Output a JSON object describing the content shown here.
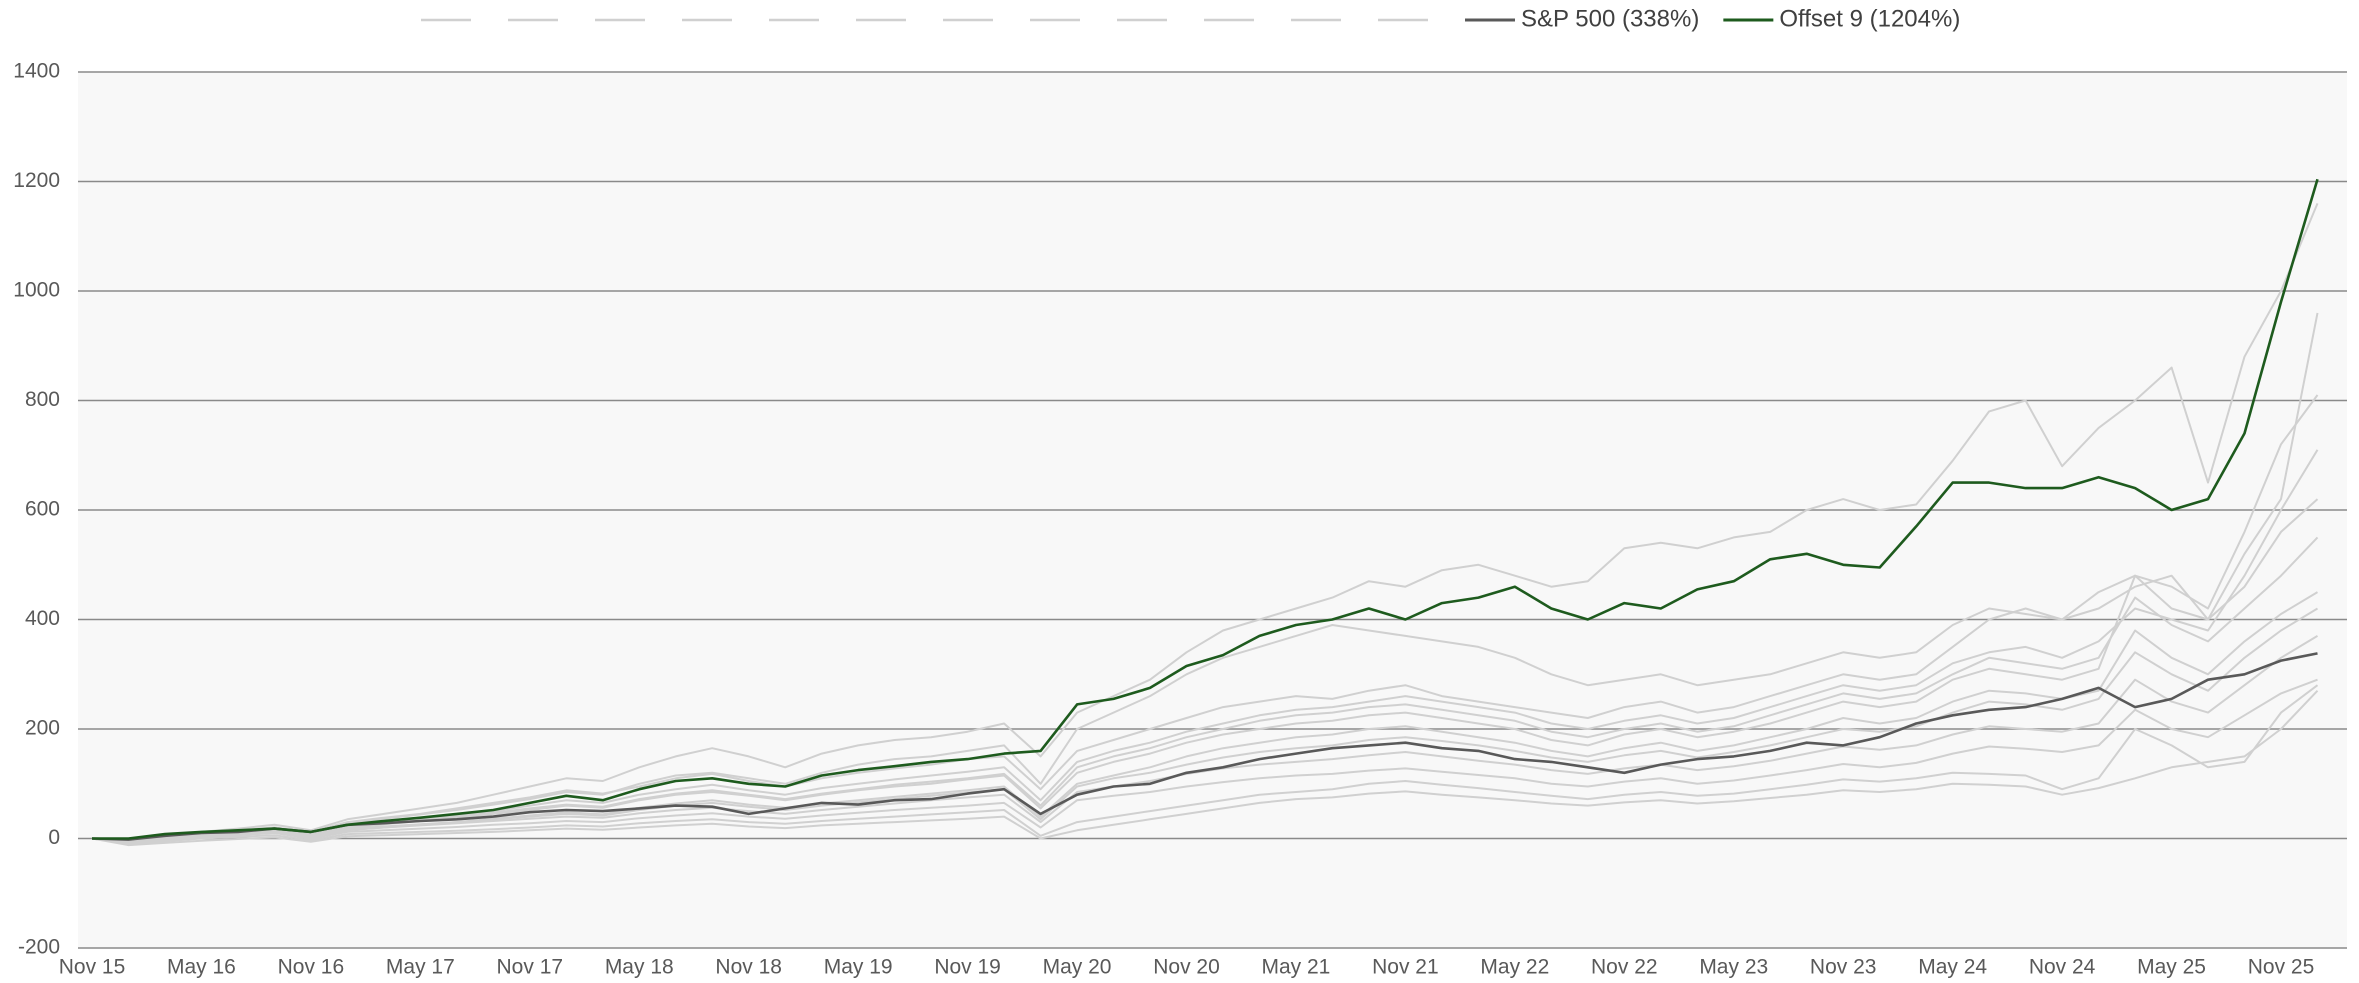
{
  "chart_data": {
    "type": "line",
    "categories": [
      "Nov 15",
      null,
      null,
      "May 16",
      null,
      null,
      "Nov 16",
      null,
      null,
      "May 17",
      null,
      null,
      "Nov 17",
      null,
      null,
      "May 18",
      null,
      null,
      "Nov 18",
      null,
      null,
      "May 19",
      null,
      null,
      "Nov 19",
      null,
      null,
      "May 20",
      null,
      null,
      "Nov 20",
      null,
      null,
      "May 21",
      null,
      null,
      "Nov 21",
      null,
      null,
      "May 22",
      null,
      null,
      "Nov 22",
      null,
      null,
      "May 23",
      null,
      null,
      "Nov 23",
      null,
      null,
      "May 24",
      null,
      null,
      "Nov 24",
      null,
      null,
      "May 25",
      null,
      null,
      "Nov 25",
      null
    ],
    "ylim": [
      -200,
      1400
    ],
    "yticks": [
      -200,
      0,
      200,
      400,
      600,
      800,
      1000,
      1200,
      1400
    ],
    "grid": true,
    "legend": "top",
    "series": [
      {
        "color": "#d0d0d0",
        "values": [
          0,
          -5,
          5,
          12,
          18,
          25,
          15,
          35,
          45,
          55,
          65,
          80,
          95,
          110,
          105,
          130,
          150,
          165,
          150,
          130,
          155,
          170,
          180,
          185,
          195,
          210,
          150,
          230,
          260,
          290,
          340,
          380,
          400,
          420,
          440,
          470,
          460,
          490,
          500,
          480,
          460,
          470,
          530,
          540,
          530,
          550,
          560,
          600,
          620,
          600,
          610,
          690,
          780,
          800,
          680,
          750,
          800,
          860,
          650,
          880,
          1000,
          1160
        ]
      },
      {
        "color": "#d0d0d0",
        "values": [
          0,
          -8,
          2,
          8,
          14,
          20,
          10,
          28,
          36,
          44,
          52,
          62,
          72,
          85,
          80,
          100,
          115,
          120,
          110,
          100,
          120,
          135,
          145,
          150,
          160,
          170,
          100,
          200,
          230,
          260,
          300,
          330,
          350,
          370,
          390,
          380,
          370,
          360,
          350,
          330,
          300,
          280,
          290,
          300,
          280,
          290,
          300,
          320,
          340,
          330,
          340,
          390,
          420,
          410,
          400,
          420,
          460,
          480,
          400,
          520,
          620,
          960
        ]
      },
      {
        "color": "#d0d0d0",
        "values": [
          0,
          -6,
          3,
          9,
          15,
          20,
          12,
          30,
          38,
          45,
          55,
          65,
          75,
          88,
          82,
          95,
          110,
          118,
          105,
          95,
          110,
          120,
          128,
          135,
          145,
          150,
          90,
          160,
          180,
          200,
          220,
          240,
          250,
          260,
          255,
          270,
          280,
          260,
          250,
          240,
          230,
          220,
          240,
          250,
          230,
          240,
          260,
          280,
          300,
          290,
          300,
          350,
          400,
          420,
          400,
          450,
          480,
          460,
          420,
          560,
          720,
          810
        ]
      },
      {
        "color": "#d0d0d0",
        "values": [
          0,
          -4,
          4,
          10,
          14,
          18,
          8,
          24,
          30,
          36,
          42,
          50,
          60,
          70,
          65,
          80,
          90,
          98,
          88,
          80,
          92,
          100,
          108,
          115,
          122,
          130,
          70,
          140,
          160,
          175,
          195,
          210,
          225,
          235,
          240,
          250,
          260,
          250,
          240,
          230,
          210,
          200,
          215,
          225,
          210,
          220,
          240,
          260,
          280,
          270,
          280,
          320,
          340,
          350,
          330,
          360,
          420,
          400,
          380,
          480,
          600,
          710
        ]
      },
      {
        "color": "#d0d0d0",
        "values": [
          0,
          -3,
          3,
          8,
          12,
          16,
          6,
          20,
          26,
          32,
          38,
          45,
          52,
          60,
          56,
          70,
          80,
          85,
          78,
          70,
          80,
          88,
          95,
          100,
          108,
          115,
          55,
          120,
          140,
          155,
          175,
          190,
          200,
          210,
          215,
          225,
          230,
          220,
          210,
          200,
          180,
          170,
          190,
          200,
          185,
          195,
          210,
          230,
          250,
          240,
          250,
          290,
          310,
          300,
          290,
          310,
          480,
          420,
          400,
          460,
          560,
          620
        ]
      },
      {
        "color": "#d0d0d0",
        "values": [
          0,
          -2,
          4,
          9,
          13,
          17,
          8,
          22,
          28,
          34,
          40,
          47,
          55,
          62,
          58,
          72,
          82,
          88,
          80,
          72,
          82,
          90,
          98,
          104,
          110,
          118,
          60,
          130,
          150,
          165,
          185,
          200,
          215,
          225,
          230,
          240,
          245,
          235,
          225,
          215,
          195,
          185,
          200,
          210,
          195,
          205,
          225,
          245,
          265,
          255,
          265,
          300,
          330,
          320,
          310,
          330,
          440,
          390,
          360,
          420,
          480,
          550
        ]
      },
      {
        "color": "#d0d0d0",
        "values": [
          0,
          -4,
          2,
          6,
          10,
          14,
          4,
          18,
          22,
          26,
          30,
          36,
          42,
          48,
          44,
          56,
          64,
          70,
          62,
          56,
          64,
          70,
          76,
          82,
          88,
          95,
          40,
          100,
          115,
          130,
          150,
          165,
          175,
          185,
          190,
          200,
          205,
          195,
          185,
          175,
          160,
          150,
          165,
          175,
          160,
          170,
          185,
          200,
          220,
          210,
          220,
          250,
          270,
          265,
          255,
          270,
          380,
          330,
          300,
          360,
          410,
          450
        ]
      },
      {
        "color": "#d0d0d0",
        "values": [
          0,
          -10,
          -2,
          4,
          8,
          12,
          2,
          15,
          20,
          25,
          30,
          35,
          40,
          45,
          42,
          52,
          60,
          65,
          58,
          52,
          60,
          66,
          72,
          78,
          84,
          90,
          35,
          95,
          110,
          120,
          135,
          148,
          158,
          165,
          170,
          180,
          185,
          178,
          170,
          160,
          148,
          140,
          152,
          160,
          148,
          158,
          170,
          185,
          200,
          195,
          205,
          230,
          250,
          245,
          235,
          255,
          340,
          300,
          270,
          330,
          380,
          420
        ]
      },
      {
        "color": "#d0d0d0",
        "values": [
          0,
          -6,
          0,
          5,
          9,
          13,
          3,
          16,
          20,
          24,
          28,
          32,
          36,
          40,
          38,
          46,
          52,
          56,
          50,
          45,
          52,
          58,
          64,
          70,
          75,
          80,
          30,
          85,
          95,
          105,
          118,
          128,
          135,
          140,
          145,
          152,
          158,
          150,
          142,
          135,
          125,
          118,
          128,
          135,
          125,
          132,
          142,
          155,
          168,
          162,
          170,
          190,
          205,
          200,
          195,
          210,
          290,
          250,
          230,
          280,
          330,
          370
        ]
      },
      {
        "color": "#d0d0d0",
        "values": [
          0,
          -8,
          -3,
          2,
          6,
          10,
          0,
          12,
          15,
          18,
          21,
          25,
          28,
          32,
          30,
          37,
          42,
          46,
          40,
          36,
          42,
          47,
          52,
          56,
          60,
          65,
          20,
          70,
          78,
          85,
          95,
          103,
          110,
          115,
          118,
          124,
          128,
          122,
          116,
          110,
          100,
          95,
          104,
          110,
          100,
          106,
          115,
          125,
          136,
          130,
          138,
          155,
          168,
          164,
          158,
          170,
          235,
          200,
          185,
          225,
          265,
          290
        ]
      },
      {
        "color": "#d0d0d0",
        "values": [
          0,
          -10,
          -5,
          0,
          3,
          6,
          -3,
          8,
          10,
          12,
          14,
          17,
          20,
          24,
          22,
          28,
          32,
          35,
          30,
          27,
          32,
          36,
          40,
          44,
          48,
          52,
          5,
          30,
          40,
          50,
          60,
          70,
          80,
          85,
          90,
          100,
          105,
          98,
          92,
          85,
          78,
          72,
          80,
          85,
          78,
          82,
          90,
          98,
          108,
          104,
          110,
          120,
          118,
          115,
          90,
          110,
          200,
          170,
          130,
          140,
          230,
          280
        ]
      },
      {
        "color": "#d0d0d0",
        "values": [
          0,
          -12,
          -8,
          -4,
          -1,
          2,
          -6,
          4,
          6,
          8,
          10,
          12,
          15,
          18,
          16,
          20,
          24,
          27,
          22,
          19,
          24,
          27,
          30,
          33,
          36,
          40,
          0,
          15,
          25,
          35,
          45,
          55,
          65,
          72,
          75,
          82,
          86,
          80,
          75,
          70,
          64,
          60,
          66,
          70,
          64,
          68,
          74,
          80,
          88,
          85,
          90,
          100,
          98,
          95,
          80,
          92,
          110,
          130,
          140,
          150,
          200,
          270
        ]
      },
      {
        "name": "S&P 500 (338%)",
        "color": "#595959",
        "values": [
          0,
          -2,
          5,
          10,
          12,
          18,
          12,
          25,
          28,
          32,
          35,
          40,
          48,
          52,
          50,
          55,
          60,
          58,
          45,
          55,
          65,
          62,
          70,
          72,
          82,
          90,
          45,
          80,
          95,
          100,
          120,
          130,
          145,
          155,
          165,
          170,
          175,
          165,
          160,
          145,
          140,
          130,
          120,
          135,
          145,
          150,
          160,
          175,
          170,
          185,
          210,
          225,
          235,
          240,
          255,
          275,
          240,
          255,
          290,
          300,
          325,
          338
        ]
      },
      {
        "name": "Offset 9 (1204%)",
        "color": "#1e5b1e",
        "values": [
          0,
          0,
          8,
          12,
          15,
          18,
          12,
          25,
          32,
          38,
          45,
          52,
          65,
          78,
          70,
          90,
          105,
          110,
          100,
          95,
          115,
          125,
          132,
          140,
          145,
          155,
          160,
          245,
          255,
          275,
          315,
          335,
          370,
          390,
          400,
          420,
          400,
          430,
          440,
          460,
          420,
          400,
          430,
          420,
          455,
          470,
          510,
          520,
          500,
          495,
          570,
          650,
          650,
          640,
          640,
          660,
          640,
          600,
          620,
          740,
          980,
          1204
        ]
      }
    ]
  }
}
